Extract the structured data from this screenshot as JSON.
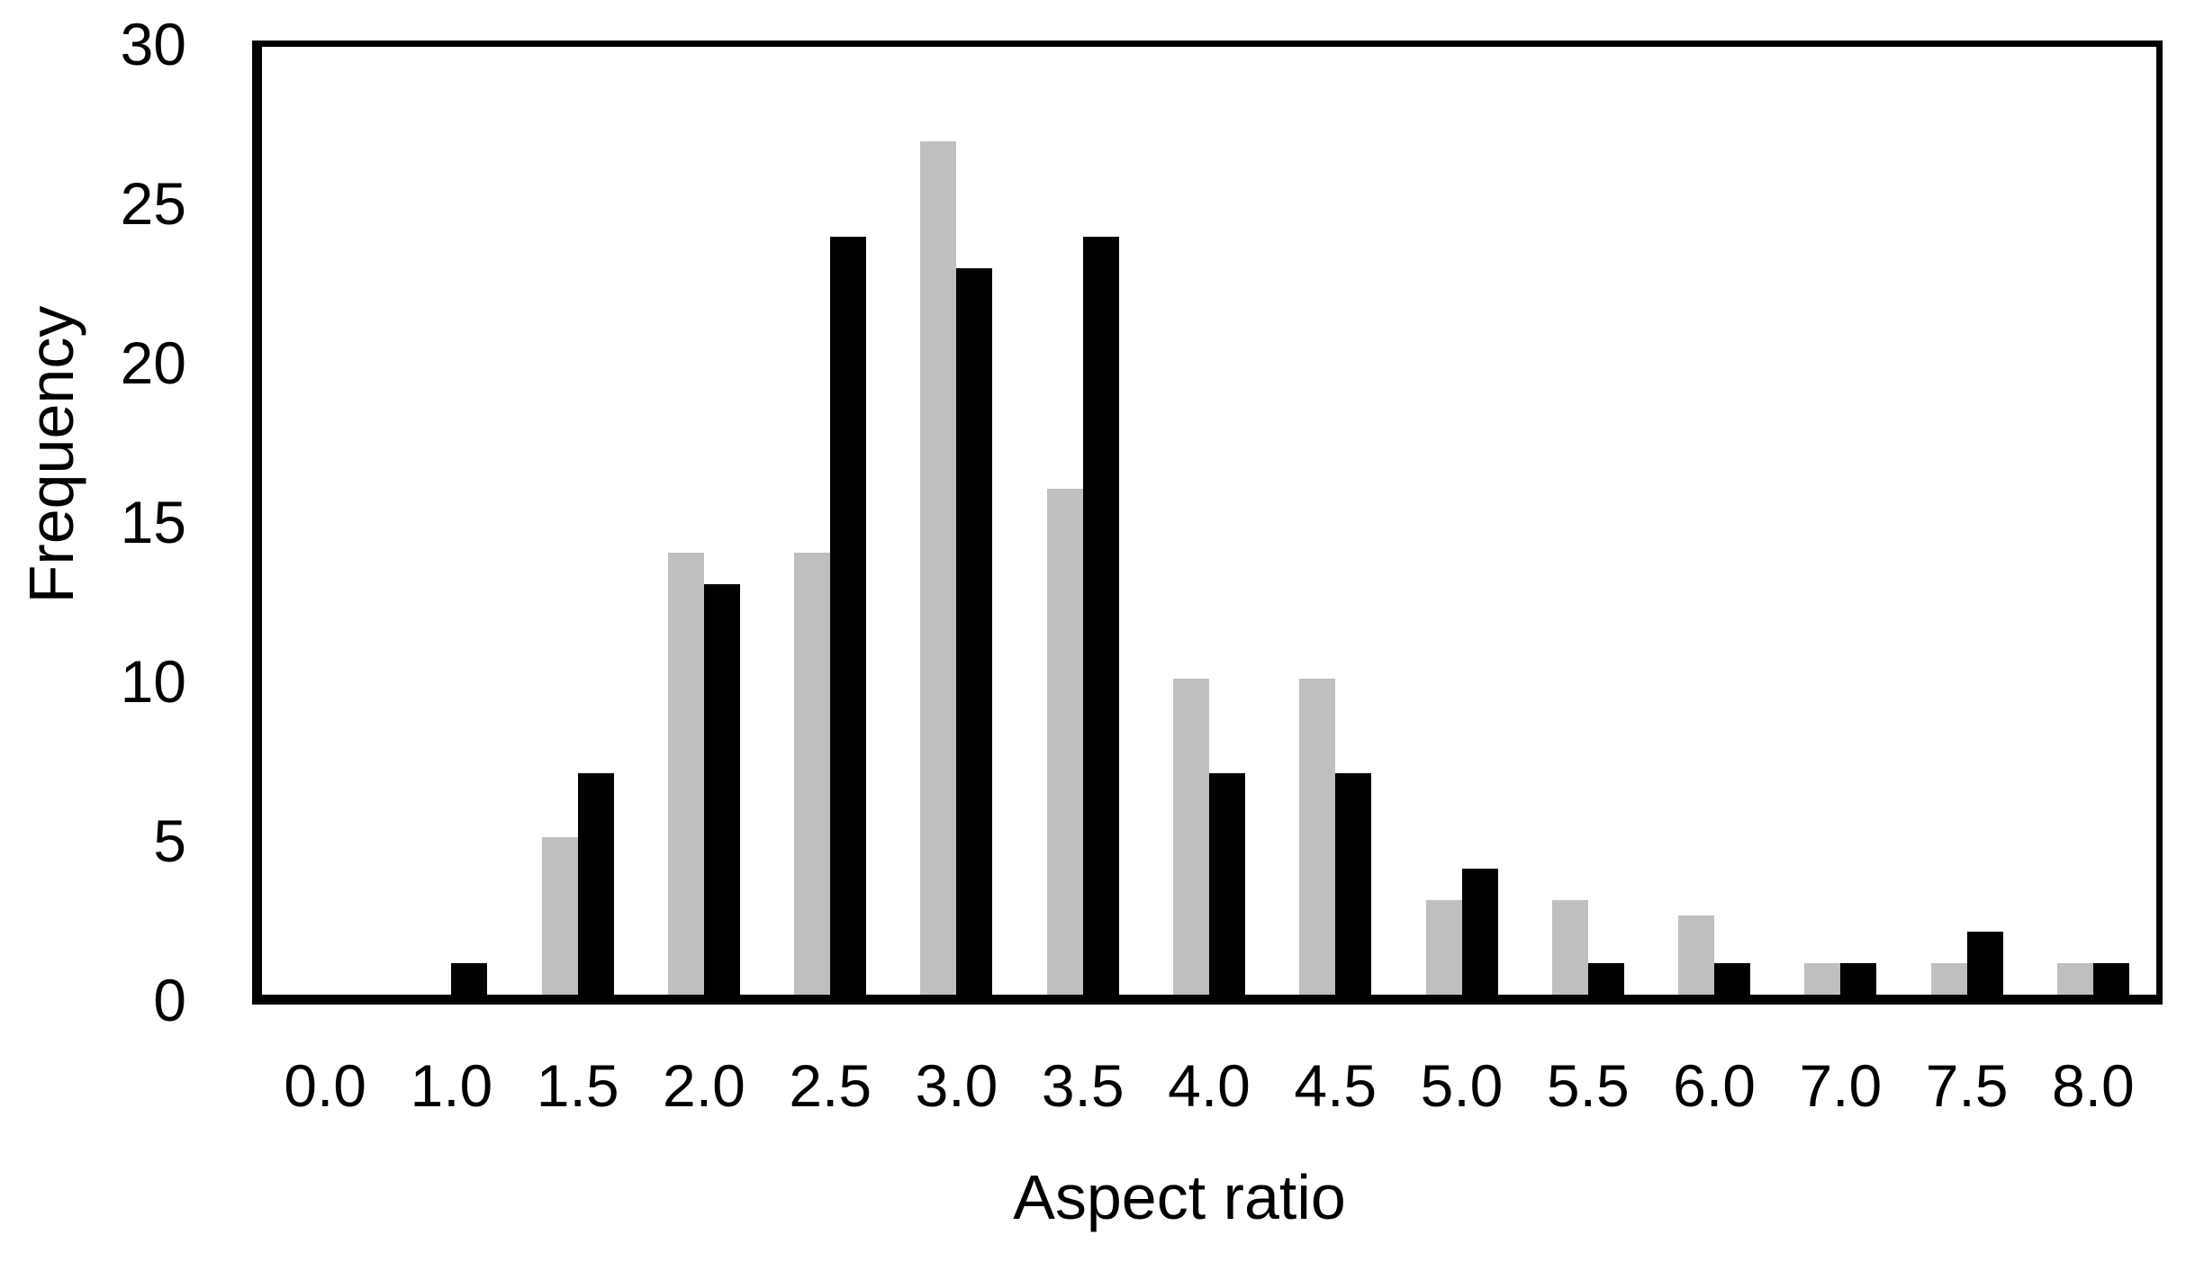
{
  "chart_data": {
    "type": "bar",
    "title": "",
    "xlabel": "Aspect ratio",
    "ylabel": "Frequency",
    "categories": [
      "0.0",
      "1.0",
      "1.5",
      "2.0",
      "2.5",
      "3.0",
      "3.5",
      "4.0",
      "4.5",
      "5.0",
      "5.5",
      "6.0",
      "7.0",
      "7.5",
      "8.0"
    ],
    "series": [
      {
        "name": "gray-series",
        "color": "#bfbfbf",
        "values": [
          0,
          0,
          5,
          14,
          14,
          27,
          16,
          10,
          10,
          3,
          3,
          2.5,
          1,
          1,
          1
        ]
      },
      {
        "name": "black-series",
        "color": "#000000",
        "values": [
          0,
          1,
          7,
          13,
          24,
          23,
          24,
          7,
          7,
          4,
          1,
          1,
          1,
          2,
          1
        ]
      }
    ],
    "ylim": [
      0,
      30
    ],
    "y_ticks": [
      0,
      5,
      10,
      15,
      20,
      25,
      30
    ],
    "grid": false,
    "legend": "none",
    "plot_border": "box",
    "bar_gap": "paired side-by-side, gray left / black right"
  }
}
